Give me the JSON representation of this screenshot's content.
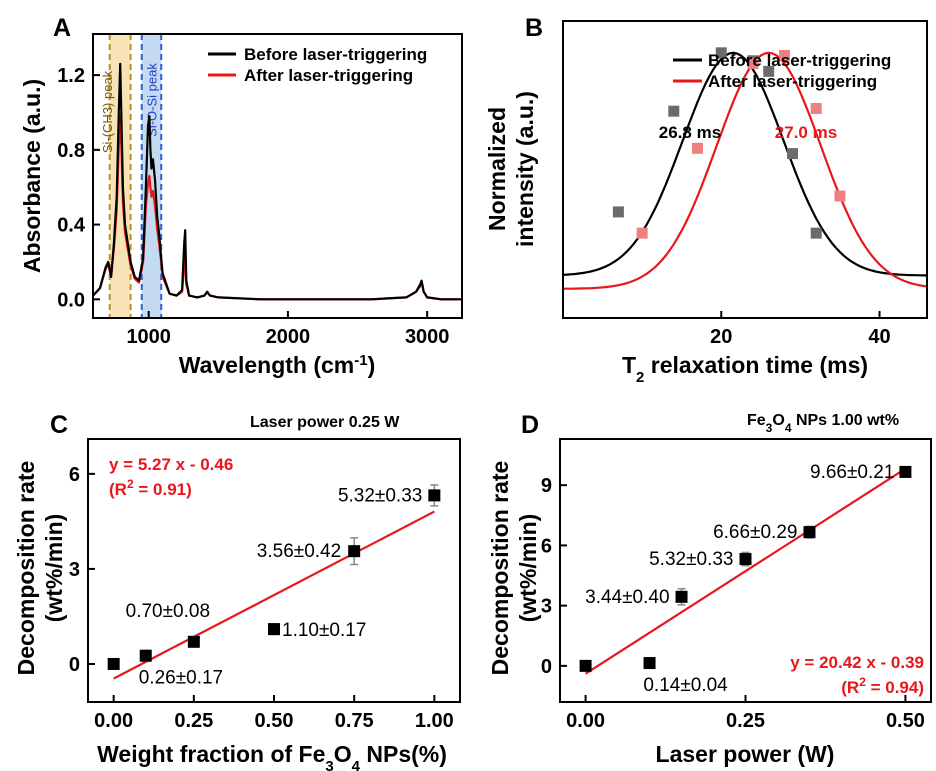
{
  "chart_data": [
    {
      "panel": "A",
      "type": "line",
      "xlabel": "Wavelength (cm-1)",
      "xlim": [
        600,
        3250
      ],
      "ylim": [
        -0.1,
        1.42
      ],
      "xticks": [
        "1000",
        "2000",
        "3000"
      ],
      "yticks": [
        "0.0",
        "0.4",
        "0.8",
        "1.2"
      ],
      "xtick_values": [
        1000,
        2000,
        3000
      ],
      "ytick_values": [
        0,
        0.4,
        0.8,
        1.2
      ],
      "ylabel": "Absorbance (a.u.)",
      "legend_position": "top-right",
      "regions": [
        {
          "label": "Si-(CH3) peak",
          "from": 720,
          "to": 870,
          "color": "#f7e3b5",
          "line": "#b8902a",
          "text_color": "#7a5a10"
        },
        {
          "label": "Si-O-Si peak",
          "from": 950,
          "to": 1090,
          "color": "#c4daf0",
          "line": "#2f5fd0",
          "text_color": "#1f3fd0"
        }
      ],
      "series": [
        {
          "name": "Before laser-triggering",
          "color": "#000000",
          "x": [
            600,
            650,
            690,
            710,
            730,
            750,
            770,
            785,
            795,
            805,
            815,
            830,
            850,
            870,
            900,
            930,
            960,
            980,
            995,
            1005,
            1012,
            1020,
            1030,
            1045,
            1060,
            1075,
            1090,
            1100,
            1150,
            1200,
            1240,
            1255,
            1262,
            1270,
            1290,
            1350,
            1400,
            1420,
            1440,
            1500,
            1800,
            2200,
            2600,
            2850,
            2920,
            2950,
            2960,
            2975,
            3000,
            3100,
            3250
          ],
          "y": [
            0.02,
            0.06,
            0.17,
            0.2,
            0.12,
            0.3,
            0.55,
            1.0,
            1.26,
            0.95,
            0.6,
            0.4,
            0.3,
            0.2,
            0.12,
            0.1,
            0.22,
            0.6,
            0.93,
            0.98,
            0.8,
            0.7,
            0.75,
            0.64,
            0.45,
            0.35,
            0.22,
            0.14,
            0.03,
            0.02,
            0.05,
            0.3,
            0.37,
            0.1,
            0.02,
            0.01,
            0.02,
            0.04,
            0.02,
            0.01,
            0.0,
            0.0,
            0.0,
            0.01,
            0.04,
            0.08,
            0.1,
            0.04,
            0.01,
            0.0,
            0.0
          ]
        },
        {
          "name": "After laser-triggering",
          "color": "#e8171b",
          "x": [
            600,
            650,
            690,
            710,
            730,
            750,
            770,
            785,
            795,
            805,
            815,
            830,
            850,
            870,
            900,
            930,
            960,
            980,
            995,
            1005,
            1012,
            1020,
            1030,
            1045,
            1060,
            1075,
            1090,
            1100,
            1150,
            1200,
            1240,
            1255,
            1262,
            1270,
            1290,
            1350,
            1400,
            1420,
            1440,
            1500,
            1800,
            2200,
            2600,
            2850,
            2920,
            2950,
            2960,
            2975,
            3000,
            3100,
            3250
          ],
          "y": [
            0.02,
            0.06,
            0.16,
            0.19,
            0.12,
            0.27,
            0.48,
            0.82,
            0.98,
            0.8,
            0.52,
            0.36,
            0.27,
            0.18,
            0.11,
            0.09,
            0.2,
            0.5,
            0.62,
            0.66,
            0.6,
            0.55,
            0.58,
            0.5,
            0.38,
            0.3,
            0.2,
            0.12,
            0.03,
            0.02,
            0.04,
            0.18,
            0.22,
            0.08,
            0.02,
            0.01,
            0.02,
            0.04,
            0.02,
            0.01,
            0.0,
            0.0,
            0.0,
            0.01,
            0.04,
            0.07,
            0.09,
            0.04,
            0.01,
            0.0,
            0.0
          ]
        }
      ]
    },
    {
      "panel": "B",
      "type": "line",
      "xlabel": "T2 relaxation time (ms)",
      "ylabel": [
        "Normalized",
        "intensity (a.u.)"
      ],
      "xlim": [
        0,
        46
      ],
      "ylim": [
        0,
        1.12
      ],
      "xticks": [
        "20",
        "40"
      ],
      "xtick_values": [
        20,
        40
      ],
      "legend_position": "top-right",
      "series": [
        {
          "name": "Before laser-triggering",
          "color": "#000000",
          "peak_label": "26.8 ms",
          "fit_center": 21.5,
          "fit_width": 9.0,
          "fit_base": 0.16,
          "fit_amp": 0.84,
          "points": [
            [
              7,
              0.4
            ],
            [
              14,
              0.78
            ],
            [
              20,
              1.0
            ],
            [
              24,
              0.97
            ],
            [
              26,
              0.93
            ],
            [
              29,
              0.62
            ],
            [
              32,
              0.32
            ]
          ]
        },
        {
          "name": "After laser-triggering",
          "color": "#e8171b",
          "peak_label": "27.0 ms",
          "fit_center": 26.0,
          "fit_width": 9.3,
          "fit_base": 0.11,
          "fit_amp": 0.89,
          "points": [
            [
              10,
              0.32
            ],
            [
              17,
              0.64
            ],
            [
              24,
              0.96
            ],
            [
              28,
              0.99
            ],
            [
              32,
              0.79
            ],
            [
              35,
              0.46
            ]
          ]
        }
      ]
    },
    {
      "panel": "C",
      "type": "scatter",
      "subtitle": "Laser power 0.25 W",
      "xlabel": "Weight fraction of Fe3O4 NPs(%)",
      "ylabel": [
        "Decomposition rate",
        "(wt%/min)"
      ],
      "xlim": [
        -0.08,
        1.08
      ],
      "ylim": [
        -1.2,
        7.1
      ],
      "xticks": [
        "0.00",
        "0.25",
        "0.50",
        "0.75",
        "1.00"
      ],
      "xtick_values": [
        0,
        0.25,
        0.5,
        0.75,
        1.0
      ],
      "yticks": [
        "0",
        "3",
        "6"
      ],
      "ytick_values": [
        0,
        3,
        6
      ],
      "fit": {
        "slope": 5.27,
        "intercept": -0.46,
        "equation": "y = 5.27 x - 0.46",
        "r2": "(R2 = 0.91)"
      },
      "points": [
        {
          "x": 0.0,
          "y": 0.0,
          "err": 0.1,
          "label": ""
        },
        {
          "x": 0.1,
          "y": 0.26,
          "err": 0.17,
          "label": "0.26±0.17"
        },
        {
          "x": 0.25,
          "y": 0.7,
          "err": 0.08,
          "label": "0.70±0.08"
        },
        {
          "x": 0.5,
          "y": 1.1,
          "err": 0.17,
          "label": "1.10±0.17"
        },
        {
          "x": 0.75,
          "y": 3.56,
          "err": 0.42,
          "label": "3.56±0.42"
        },
        {
          "x": 1.0,
          "y": 5.32,
          "err": 0.33,
          "label": "5.32±0.33"
        }
      ]
    },
    {
      "panel": "D",
      "type": "scatter",
      "subtitle": "Fe3O4 NPs 1.00 wt%",
      "xlabel": "Laser power (W)",
      "ylabel": [
        "Decomposition rate",
        "(wt%/min)"
      ],
      "xlim": [
        -0.04,
        0.54
      ],
      "ylim": [
        -1.8,
        11.3
      ],
      "xticks": [
        "0.00",
        "0.25",
        "0.50"
      ],
      "xtick_values": [
        0,
        0.25,
        0.5
      ],
      "yticks": [
        "0",
        "3",
        "6",
        "9"
      ],
      "ytick_values": [
        0,
        3,
        6,
        9
      ],
      "fit": {
        "slope": 20.42,
        "intercept": -0.39,
        "equation": "y = 20.42 x - 0.39",
        "r2": "(R2 = 0.94)"
      },
      "points": [
        {
          "x": 0.0,
          "y": 0.0,
          "err": 0.1,
          "label": ""
        },
        {
          "x": 0.1,
          "y": 0.14,
          "err": 0.04,
          "label": "0.14±0.04"
        },
        {
          "x": 0.15,
          "y": 3.44,
          "err": 0.4,
          "label": "3.44±0.40"
        },
        {
          "x": 0.25,
          "y": 5.32,
          "err": 0.33,
          "label": "5.32±0.33"
        },
        {
          "x": 0.35,
          "y": 6.66,
          "err": 0.29,
          "label": "6.66±0.29"
        },
        {
          "x": 0.5,
          "y": 9.66,
          "err": 0.21,
          "label": "9.66±0.21"
        }
      ]
    }
  ]
}
